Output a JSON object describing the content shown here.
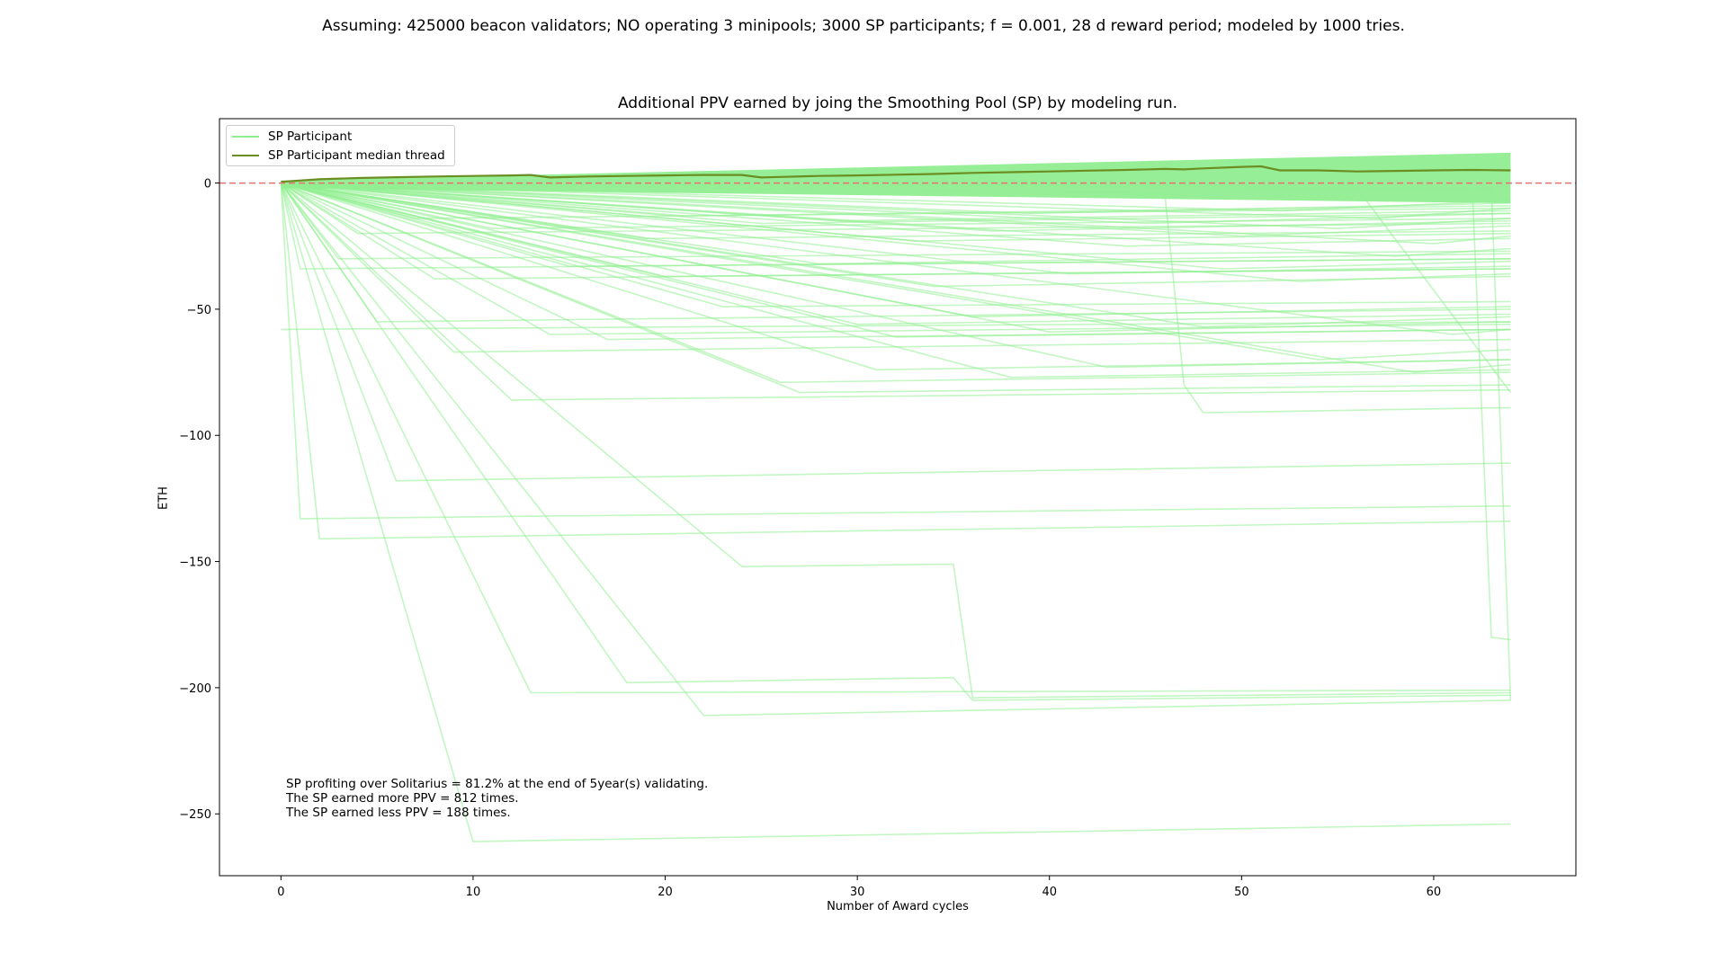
{
  "chart_data": {
    "type": "line",
    "suptitle": "Assuming: 425000 beacon validators; NO operating 3 minipools; 3000 SP participants; f = 0.001, 28 d reward period; modeled by 1000 tries.",
    "title": "Additional PPV earned by joing the Smoothing Pool (SP) by modeling run.",
    "xlabel": "Number of Award cycles",
    "ylabel": "ETH",
    "xlim": [
      -3.2,
      67.4
    ],
    "ylim": [
      -274.5,
      25.5
    ],
    "xticks": [
      0,
      10,
      20,
      30,
      40,
      50,
      60
    ],
    "yticks": [
      0,
      -50,
      -100,
      -150,
      -200,
      -250
    ],
    "grid": false,
    "legend_position": "top-left",
    "reference_line": {
      "y": 0,
      "style": "dashed",
      "color": "#e87070"
    },
    "colors": {
      "participant": "#90ee90",
      "median": "#6b8e23"
    },
    "series": [
      {
        "name": "SP Participant median thread",
        "x": [
          0,
          2,
          4,
          6,
          8,
          10,
          12,
          13,
          14,
          16,
          18,
          20,
          22,
          24,
          25,
          26,
          28,
          30,
          32,
          34,
          36,
          38,
          40,
          42,
          44,
          46,
          47,
          48,
          50,
          51,
          52,
          54,
          56,
          58,
          60,
          62,
          64
        ],
        "y": [
          0.5,
          1.5,
          2,
          2.3,
          2.6,
          2.8,
          3.0,
          3.2,
          2.2,
          2.6,
          2.8,
          3.0,
          3.2,
          3.2,
          2.2,
          2.4,
          2.8,
          3.0,
          3.3,
          3.6,
          4.0,
          4.3,
          4.6,
          4.9,
          5.2,
          5.6,
          5.4,
          5.8,
          6.4,
          6.6,
          5.0,
          5.0,
          4.6,
          4.8,
          5.0,
          5.2,
          5.0
        ]
      }
    ],
    "participant_threads": [
      {
        "x": [
          0,
          1,
          64
        ],
        "y": [
          0,
          -133,
          -128
        ]
      },
      {
        "x": [
          0,
          2,
          64
        ],
        "y": [
          0,
          -141,
          -134
        ]
      },
      {
        "x": [
          0,
          6,
          64
        ],
        "y": [
          0,
          -118,
          -111
        ]
      },
      {
        "x": [
          0,
          10,
          64
        ],
        "y": [
          0,
          -261,
          -254
        ]
      },
      {
        "x": [
          0,
          13,
          64
        ],
        "y": [
          0,
          -202,
          -201
        ]
      },
      {
        "x": [
          0,
          18,
          35,
          36,
          64
        ],
        "y": [
          0,
          -198,
          -196,
          -205,
          -203
        ]
      },
      {
        "x": [
          0,
          22,
          64
        ],
        "y": [
          0,
          -211,
          -205
        ]
      },
      {
        "x": [
          0,
          24,
          35,
          36,
          64
        ],
        "y": [
          0,
          -152,
          -151,
          -204,
          -202
        ]
      },
      {
        "x": [
          0,
          62,
          63,
          64
        ],
        "y": [
          0,
          -1,
          -180,
          -181
        ]
      },
      {
        "x": [
          0,
          63,
          64
        ],
        "y": [
          0,
          -2,
          -205
        ]
      },
      {
        "x": [
          0,
          0,
          64
        ],
        "y": [
          -58,
          -58,
          -55
        ]
      },
      {
        "x": [
          0,
          12,
          64
        ],
        "y": [
          0,
          -86,
          -82
        ]
      },
      {
        "x": [
          0,
          27,
          64
        ],
        "y": [
          0,
          -83,
          -80
        ]
      },
      {
        "x": [
          0,
          31,
          64
        ],
        "y": [
          0,
          -74,
          -70
        ]
      },
      {
        "x": [
          0,
          38,
          64
        ],
        "y": [
          0,
          -77,
          -74
        ]
      },
      {
        "x": [
          0,
          46,
          47,
          48,
          64
        ],
        "y": [
          0,
          -4,
          -80,
          -91,
          -89
        ]
      },
      {
        "x": [
          0,
          56,
          64
        ],
        "y": [
          0,
          -2,
          -83
        ]
      },
      {
        "x": [
          0,
          9,
          64
        ],
        "y": [
          0,
          -67,
          -62
        ]
      },
      {
        "x": [
          0,
          5,
          64
        ],
        "y": [
          0,
          -55,
          -50
        ]
      },
      {
        "x": [
          0,
          14,
          64
        ],
        "y": [
          0,
          -60,
          -56
        ]
      },
      {
        "x": [
          0,
          17,
          64
        ],
        "y": [
          0,
          -62,
          -58
        ]
      },
      {
        "x": [
          0,
          23,
          64
        ],
        "y": [
          0,
          -49,
          -47
        ]
      },
      {
        "x": [
          0,
          32,
          64
        ],
        "y": [
          0,
          -61,
          -58
        ]
      },
      {
        "x": [
          0,
          43,
          64
        ],
        "y": [
          0,
          -73,
          -70
        ]
      },
      {
        "x": [
          0,
          54,
          64
        ],
        "y": [
          0,
          -70,
          -66
        ]
      },
      {
        "x": [
          0,
          59,
          64
        ],
        "y": [
          0,
          -75,
          -72
        ]
      },
      {
        "x": [
          0,
          26,
          64
        ],
        "y": [
          0,
          -79,
          -75
        ]
      },
      {
        "x": [
          0,
          40,
          64
        ],
        "y": [
          0,
          -59,
          -55
        ]
      },
      {
        "x": [
          0,
          1,
          64
        ],
        "y": [
          0,
          -34,
          -30
        ]
      },
      {
        "x": [
          0,
          3,
          64
        ],
        "y": [
          0,
          -30,
          -27
        ]
      },
      {
        "x": [
          0,
          8,
          64
        ],
        "y": [
          0,
          -38,
          -34
        ]
      },
      {
        "x": [
          0,
          15,
          64
        ],
        "y": [
          0,
          -33,
          -30
        ]
      },
      {
        "x": [
          0,
          20,
          64
        ],
        "y": [
          0,
          -37,
          -34
        ]
      },
      {
        "x": [
          0,
          28,
          64
        ],
        "y": [
          0,
          -32,
          -28
        ]
      },
      {
        "x": [
          0,
          34,
          64
        ],
        "y": [
          0,
          -41,
          -37
        ]
      },
      {
        "x": [
          0,
          41,
          64
        ],
        "y": [
          0,
          -36,
          -33
        ]
      },
      {
        "x": [
          0,
          49,
          64
        ],
        "y": [
          0,
          -34,
          -31
        ]
      },
      {
        "x": [
          0,
          53,
          64
        ],
        "y": [
          0,
          -39,
          -36
        ]
      },
      {
        "x": [
          0,
          58,
          64
        ],
        "y": [
          0,
          -29,
          -26
        ]
      },
      {
        "x": [
          0,
          4,
          64
        ],
        "y": [
          0,
          -20,
          -16
        ]
      },
      {
        "x": [
          0,
          11,
          64
        ],
        "y": [
          0,
          -18,
          -14
        ]
      },
      {
        "x": [
          0,
          19,
          64
        ],
        "y": [
          0,
          -22,
          -19
        ]
      },
      {
        "x": [
          0,
          25,
          64
        ],
        "y": [
          0,
          -16,
          -12
        ]
      },
      {
        "x": [
          0,
          33,
          64
        ],
        "y": [
          0,
          -23,
          -20
        ]
      },
      {
        "x": [
          0,
          37,
          64
        ],
        "y": [
          0,
          -19,
          -15
        ]
      },
      {
        "x": [
          0,
          44,
          64
        ],
        "y": [
          0,
          -25,
          -22
        ]
      },
      {
        "x": [
          0,
          50,
          64
        ],
        "y": [
          0,
          -21,
          -17
        ]
      },
      {
        "x": [
          0,
          55,
          64
        ],
        "y": [
          0,
          -18,
          -14
        ]
      },
      {
        "x": [
          0,
          60,
          64
        ],
        "y": [
          0,
          -24,
          -21
        ]
      },
      {
        "x": [
          0,
          7,
          64
        ],
        "y": [
          0,
          -14,
          -10
        ]
      },
      {
        "x": [
          0,
          21,
          64
        ],
        "y": [
          0,
          -13,
          -9
        ]
      },
      {
        "x": [
          0,
          29,
          64
        ],
        "y": [
          0,
          -15,
          -11
        ]
      },
      {
        "x": [
          0,
          39,
          64
        ],
        "y": [
          0,
          -12,
          -8
        ]
      },
      {
        "x": [
          0,
          45,
          64
        ],
        "y": [
          0,
          -16,
          -12
        ]
      },
      {
        "x": [
          0,
          52,
          64
        ],
        "y": [
          0,
          -11,
          -7
        ]
      },
      {
        "x": [
          0,
          57,
          64
        ],
        "y": [
          0,
          -14,
          -10
        ]
      },
      {
        "x": [
          0,
          30,
          64
        ],
        "y": [
          0,
          -56,
          -52
        ]
      },
      {
        "x": [
          0,
          36,
          64
        ],
        "y": [
          0,
          -53,
          -49
        ]
      },
      {
        "x": [
          0,
          48,
          64
        ],
        "y": [
          0,
          -57,
          -53
        ]
      },
      {
        "x": [
          0,
          61,
          64
        ],
        "y": [
          0,
          -60,
          -58
        ]
      }
    ],
    "participant_band": {
      "x": [
        0,
        64
      ],
      "y_top": [
        1,
        12
      ],
      "y_bottom": [
        -2,
        -8
      ]
    },
    "annotation_lines": [
      "SP profiting over Solitarius = 81.2% at the end of 5year(s) validating.",
      "The SP earned more PPV = 812 times.",
      "The SP earned less PPV = 188 times."
    ],
    "legend": [
      {
        "label": "SP Participant",
        "color": "#90ee90"
      },
      {
        "label": "SP Participant median thread",
        "color": "#6b8e23"
      }
    ]
  }
}
